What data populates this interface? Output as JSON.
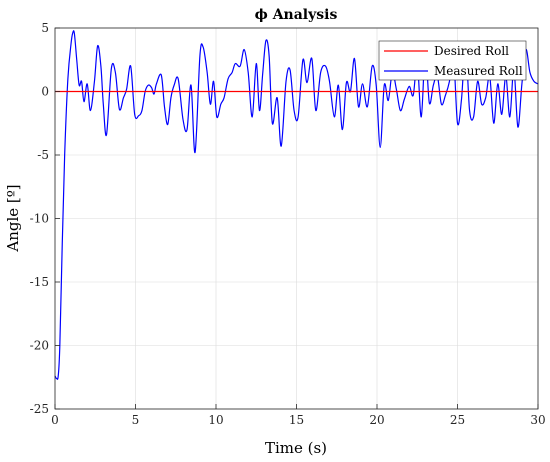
{
  "chart_data": {
    "type": "line",
    "title": "ϕ Analysis",
    "xlabel": "Time (s)",
    "ylabel": "Angle [º]",
    "xlim": [
      0,
      30
    ],
    "ylim": [
      -25,
      5
    ],
    "xticks": [
      0,
      5,
      10,
      15,
      20,
      25,
      30
    ],
    "yticks": [
      5,
      0,
      -5,
      -10,
      -15,
      -20,
      -25
    ],
    "grid": true,
    "legend_position": "top-right",
    "series": [
      {
        "name": "Desired Roll",
        "color": "#ff0000",
        "x": [
          0,
          30
        ],
        "y": [
          0,
          0
        ]
      },
      {
        "name": "Measured Roll",
        "color": "#0000ff",
        "x": [
          0,
          0.1,
          0.2,
          0.3,
          0.45,
          0.6,
          0.8,
          1.0,
          1.1,
          1.2,
          1.35,
          1.5,
          1.65,
          1.8,
          2.0,
          2.2,
          2.45,
          2.65,
          2.85,
          3.0,
          3.2,
          3.5,
          3.75,
          4.0,
          4.25,
          4.45,
          4.7,
          4.95,
          5.2,
          5.4,
          5.6,
          5.8,
          6.0,
          6.15,
          6.3,
          6.6,
          6.8,
          7.0,
          7.2,
          7.4,
          7.65,
          7.95,
          8.2,
          8.45,
          8.7,
          9.0,
          9.2,
          9.45,
          9.65,
          9.85,
          10.05,
          10.3,
          10.5,
          10.75,
          11.0,
          11.2,
          11.5,
          11.75,
          12.0,
          12.25,
          12.5,
          12.7,
          12.9,
          13.1,
          13.3,
          13.5,
          13.8,
          14.05,
          14.35,
          14.6,
          14.85,
          15.1,
          15.4,
          15.65,
          15.95,
          16.2,
          16.5,
          16.8,
          17.05,
          17.35,
          17.6,
          17.85,
          18.1,
          18.35,
          18.6,
          18.85,
          19.1,
          19.4,
          19.7,
          19.95,
          20.2,
          20.45,
          20.7,
          20.95,
          21.2,
          21.45,
          21.7,
          22.0,
          22.25,
          22.5,
          22.75,
          23.0,
          23.25,
          23.5,
          23.75,
          24.0,
          24.25,
          24.5,
          24.75,
          25.0,
          25.25,
          25.5,
          25.75,
          26.0,
          26.25,
          26.5,
          26.75,
          27.0,
          27.25,
          27.5,
          27.75,
          28.0,
          28.25,
          28.5,
          28.75,
          29.0,
          29.25,
          29.5,
          29.75,
          30.0
        ],
        "y": [
          -22.4,
          -22.6,
          -22.4,
          -20.0,
          -12.0,
          -5.0,
          1.0,
          3.8,
          4.6,
          4.6,
          2.5,
          0.5,
          0.8,
          -0.8,
          0.6,
          -1.5,
          0.8,
          3.6,
          2.0,
          -1.0,
          -3.4,
          1.8,
          1.5,
          -1.4,
          -0.5,
          0.2,
          2.0,
          -1.8,
          -1.9,
          -1.5,
          0.0,
          0.5,
          0.3,
          -0.2,
          0.6,
          1.3,
          -1.2,
          -2.6,
          -0.5,
          0.5,
          1.0,
          -2.2,
          -3.0,
          0.5,
          -4.8,
          2.8,
          3.5,
          1.5,
          -1.0,
          0.8,
          -2.0,
          -1.0,
          -0.5,
          1.0,
          1.5,
          2.2,
          2.0,
          3.3,
          1.5,
          -2.0,
          2.2,
          -1.5,
          1.4,
          4.0,
          2.8,
          -2.5,
          -0.5,
          -4.3,
          0.8,
          1.7,
          -1.5,
          -2.0,
          2.5,
          0.7,
          2.6,
          -1.5,
          1.5,
          2.0,
          0.8,
          -2.0,
          0.5,
          -3.0,
          0.7,
          0.0,
          2.6,
          -1.2,
          0.6,
          -1.2,
          2.0,
          0.5,
          -4.4,
          0.5,
          -0.7,
          1.5,
          0.2,
          -1.5,
          -0.6,
          0.4,
          -0.3,
          2.3,
          -2.0,
          3.2,
          -0.9,
          0.5,
          1.2,
          -1.0,
          -0.3,
          0.8,
          2.8,
          -2.5,
          -0.6,
          3.6,
          -1.5,
          -2.0,
          0.8,
          -1.0,
          -0.5,
          1.2,
          -2.5,
          0.6,
          -1.8,
          1.2,
          -2.0,
          1.8,
          -2.8,
          0.6,
          3.3,
          1.5,
          0.8,
          0.6
        ]
      }
    ]
  }
}
